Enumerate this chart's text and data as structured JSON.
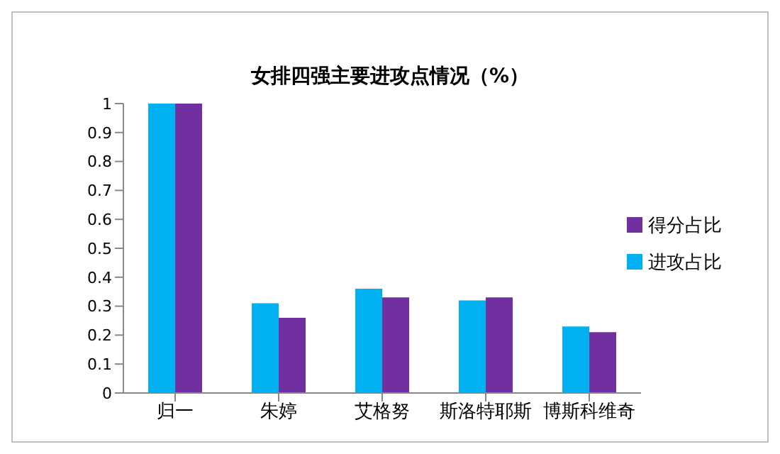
{
  "chart_data": {
    "type": "bar",
    "title": "女排四强主要进攻点情况（%）",
    "categories": [
      "归一",
      "朱婷",
      "艾格努",
      "斯洛特耶斯",
      "博斯科维奇"
    ],
    "series": [
      {
        "name": "进攻占比",
        "color": "#00b0f0",
        "values": [
          1,
          0.31,
          0.36,
          0.32,
          0.23
        ]
      },
      {
        "name": "得分占比",
        "color": "#7030a0",
        "values": [
          1,
          0.26,
          0.33,
          0.33,
          0.21
        ]
      }
    ],
    "ylim": [
      0,
      1
    ],
    "yticks": [
      0,
      0.1,
      0.2,
      0.3,
      0.4,
      0.5,
      0.6,
      0.7,
      0.8,
      0.9,
      1
    ],
    "grid": false,
    "legend": "right"
  }
}
